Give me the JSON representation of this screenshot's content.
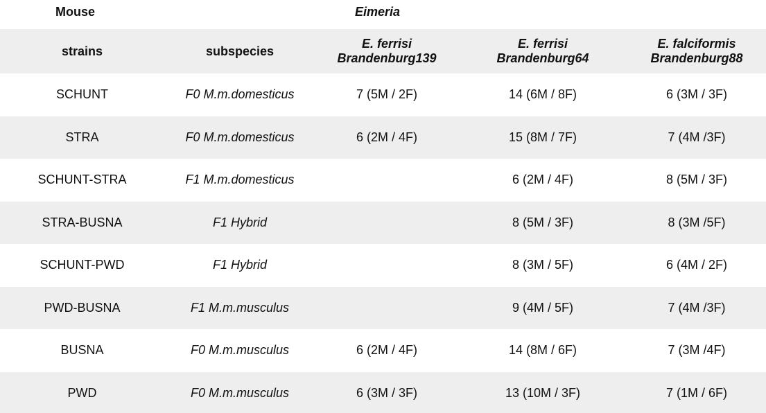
{
  "header": {
    "mouse_label": "Mouse",
    "eimeria_label": "Eimeria"
  },
  "columns": {
    "strains": "strains",
    "subspecies": "subspecies",
    "parasite1_line1": "E. ferrisi",
    "parasite1_line2": "Brandenburg139",
    "parasite2_line1": "E. ferrisi",
    "parasite2_line2": "Brandenburg64",
    "parasite3_line1": "E. falciformis",
    "parasite3_line2": "Brandenburg88"
  },
  "rows": [
    {
      "strain": "SCHUNT",
      "subspecies": "F0 M.m.domesticus",
      "p1": "7 (5M / 2F)",
      "p2": "14 (6M / 8F)",
      "p3": "6 (3M / 3F)"
    },
    {
      "strain": "STRA",
      "subspecies": "F0 M.m.domesticus",
      "p1": "6 (2M / 4F)",
      "p2": "15 (8M / 7F)",
      "p3": "7 (4M /3F)"
    },
    {
      "strain": "SCHUNT-STRA",
      "subspecies": "F1 M.m.domesticus",
      "p1": "",
      "p2": "6 (2M / 4F)",
      "p3": "8 (5M / 3F)"
    },
    {
      "strain": "STRA-BUSNA",
      "subspecies": "F1 Hybrid",
      "p1": "",
      "p2": "8 (5M / 3F)",
      "p3": "8 (3M /5F)"
    },
    {
      "strain": "SCHUNT-PWD",
      "subspecies": "F1 Hybrid",
      "p1": "",
      "p2": "8 (3M / 5F)",
      "p3": "6 (4M / 2F)"
    },
    {
      "strain": "PWD-BUSNA",
      "subspecies": "F1 M.m.musculus",
      "p1": "",
      "p2": "9 (4M / 5F)",
      "p3": "7 (4M /3F)"
    },
    {
      "strain": "BUSNA",
      "subspecies": "F0 M.m.musculus",
      "p1": "6 (2M / 4F)",
      "p2": "14 (8M / 6F)",
      "p3": "7 (3M /4F)"
    },
    {
      "strain": "PWD",
      "subspecies": "F0 M.m.musculus",
      "p1": "6 (3M / 3F)",
      "p2": "13 (10M / 3F)",
      "p3": "7 (1M / 6F)"
    }
  ]
}
